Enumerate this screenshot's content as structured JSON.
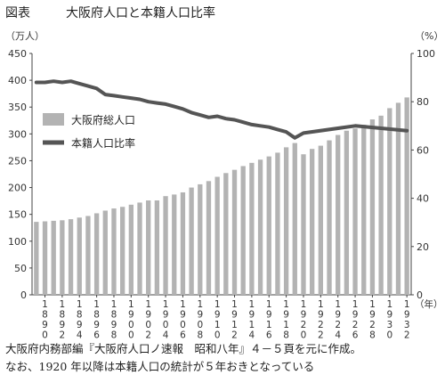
{
  "figure_label": "図表",
  "chart_data": {
    "type": "bar",
    "title": "大阪府人口と本籍人口比率",
    "left_unit": "（万人）",
    "right_unit": "（%）",
    "x_unit": "（年）",
    "left_ylim": [
      0,
      450
    ],
    "left_ticks": [
      0,
      50,
      100,
      150,
      200,
      250,
      300,
      350,
      400,
      450
    ],
    "right_ylim": [
      0,
      100
    ],
    "right_ticks": [
      0,
      20,
      40,
      60,
      80,
      100
    ],
    "x": [
      1889,
      1890,
      1891,
      1892,
      1893,
      1894,
      1895,
      1896,
      1897,
      1898,
      1899,
      1900,
      1901,
      1902,
      1903,
      1904,
      1905,
      1906,
      1907,
      1908,
      1909,
      1910,
      1911,
      1912,
      1913,
      1914,
      1915,
      1916,
      1917,
      1918,
      1919,
      1920,
      1921,
      1922,
      1923,
      1924,
      1925,
      1926,
      1927,
      1928,
      1929,
      1930,
      1931,
      1932
    ],
    "x_tick_labels": [
      {
        "year": 1890,
        "label": "1890"
      },
      {
        "year": 1892,
        "label": "1892"
      },
      {
        "year": 1894,
        "label": "1894"
      },
      {
        "year": 1896,
        "label": "1896"
      },
      {
        "year": 1898,
        "label": "1898"
      },
      {
        "year": 1900,
        "label": "1900"
      },
      {
        "year": 1902,
        "label": "1902"
      },
      {
        "year": 1904,
        "label": "1904"
      },
      {
        "year": 1906,
        "label": "1906"
      },
      {
        "year": 1908,
        "label": "1908"
      },
      {
        "year": 1910,
        "label": "1910"
      },
      {
        "year": 1912,
        "label": "1912"
      },
      {
        "year": 1914,
        "label": "1914"
      },
      {
        "year": 1916,
        "label": "1916"
      },
      {
        "year": 1918,
        "label": "1918"
      },
      {
        "year": 1920,
        "label": "1920"
      },
      {
        "year": 1922,
        "label": "1922"
      },
      {
        "year": 1924,
        "label": "1924"
      },
      {
        "year": 1926,
        "label": "1926"
      },
      {
        "year": 1928,
        "label": "1928"
      },
      {
        "year": 1930,
        "label": "1930"
      },
      {
        "year": 1932,
        "label": "1932"
      }
    ],
    "series": [
      {
        "name": "大阪府総人口",
        "kind": "bar",
        "axis": "left",
        "color": "#b3b3b3",
        "values": [
          136,
          137,
          138,
          139,
          141,
          144,
          147,
          152,
          157,
          161,
          164,
          168,
          172,
          176,
          176,
          184,
          187,
          191,
          200,
          206,
          212,
          220,
          227,
          233,
          240,
          246,
          252,
          258,
          265,
          275,
          283,
          262,
          272,
          278,
          288,
          298,
          306,
          310,
          317,
          327,
          334,
          348,
          358,
          368
        ]
      },
      {
        "name": "本籍人口比率",
        "kind": "line",
        "axis": "right",
        "color": "#555555",
        "values": [
          88,
          88,
          88.5,
          88,
          88.5,
          87.5,
          86.5,
          85.5,
          83,
          82.5,
          82,
          81.5,
          81,
          80,
          79.5,
          79,
          78,
          77,
          75.5,
          74.5,
          73.5,
          74,
          73,
          72.5,
          71.5,
          70.5,
          70,
          69.5,
          68.5,
          67.5,
          65,
          67,
          null,
          null,
          null,
          null,
          null,
          70,
          null,
          null,
          null,
          null,
          null,
          68
        ]
      }
    ],
    "legend_position": "left-middle",
    "grid": false
  },
  "note_lines": [
    "大阪府内務部編『大阪府人口ノ速報　昭和八年』４－５頁を元に作成。",
    "なお、1920 年以降は本籍人口の統計が５年おきとなっている"
  ]
}
